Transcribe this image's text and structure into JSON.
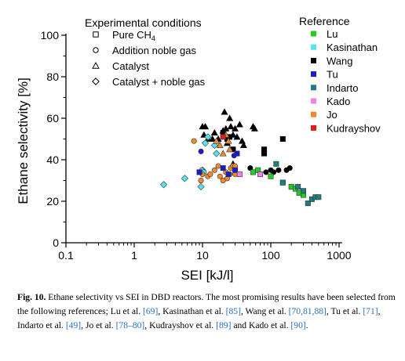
{
  "chart_data": {
    "type": "scatter",
    "xlabel": "SEI  [kJ/l]",
    "ylabel": "Ethane selectivity  [%]",
    "x_scale": "log",
    "xlim": [
      0.1,
      1000
    ],
    "ylim": [
      0,
      100
    ],
    "x_ticks": [
      "0.1",
      "1",
      "10",
      "100",
      "1000"
    ],
    "y_ticks": [
      "0",
      "20",
      "40",
      "60",
      "80",
      "100"
    ],
    "grid": false,
    "legend_markers": {
      "title": "Experimental conditions",
      "items": [
        {
          "marker": "square",
          "label": "Pure CH",
          "sub": "4"
        },
        {
          "marker": "circle",
          "label": "Addition noble gas"
        },
        {
          "marker": "triangle",
          "label": "Catalyst"
        },
        {
          "marker": "diamond",
          "label": "Catalyst + noble gas"
        }
      ]
    },
    "legend_refs": {
      "title": "Reference",
      "items": [
        {
          "label": "Lu",
          "color": "#22cc22"
        },
        {
          "label": "Kasinathan",
          "color": "#55e5ef"
        },
        {
          "label": "Wang",
          "color": "#000000"
        },
        {
          "label": "Tu",
          "color": "#1a1ad0"
        },
        {
          "label": "Indarto",
          "color": "#1e7d7d"
        },
        {
          "label": "Kado",
          "color": "#ee82ee"
        },
        {
          "label": "Jo",
          "color": "#f08a2c"
        },
        {
          "label": "Kudrayshov",
          "color": "#e01b1b"
        }
      ]
    },
    "series": [
      {
        "ref": "Wang",
        "marker": "triangle",
        "color": "#000000",
        "points": [
          [
            10,
            56
          ],
          [
            11,
            56
          ],
          [
            10.5,
            52
          ],
          [
            12,
            50
          ],
          [
            14,
            50
          ],
          [
            15,
            53
          ],
          [
            17,
            50
          ],
          [
            20,
            54
          ],
          [
            21,
            63
          ],
          [
            22,
            55
          ],
          [
            23,
            48
          ],
          [
            25,
            60
          ],
          [
            26,
            56
          ],
          [
            28,
            52
          ],
          [
            28,
            38
          ],
          [
            30,
            55
          ],
          [
            32,
            51
          ],
          [
            35,
            57
          ],
          [
            38,
            49
          ],
          [
            40,
            47
          ],
          [
            55,
            56
          ],
          [
            58,
            55
          ]
        ]
      },
      {
        "ref": "Wang",
        "marker": "square",
        "color": "#000000",
        "points": [
          [
            20,
            53
          ],
          [
            23,
            50
          ],
          [
            25,
            51
          ],
          [
            28,
            45
          ],
          [
            80,
            45
          ],
          [
            80,
            43
          ],
          [
            150,
            50
          ]
        ]
      },
      {
        "ref": "Wang",
        "marker": "circle",
        "color": "#000000",
        "points": [
          [
            50,
            36
          ],
          [
            85,
            34
          ],
          [
            100,
            35
          ],
          [
            110,
            34
          ],
          [
            130,
            35
          ],
          [
            170,
            35
          ],
          [
            190,
            36
          ]
        ]
      },
      {
        "ref": "Kasinathan",
        "marker": "diamond",
        "color": "#55e5ef",
        "points": [
          [
            2.7,
            28
          ],
          [
            5.5,
            31
          ],
          [
            9.5,
            27
          ],
          [
            10,
            35
          ],
          [
            11,
            48
          ],
          [
            12,
            51
          ],
          [
            15,
            47
          ],
          [
            16,
            43
          ]
        ]
      },
      {
        "ref": "Kasinathan",
        "marker": "circle",
        "color": "#55e5ef",
        "points": [
          [
            9.8,
            35
          ],
          [
            10.5,
            34
          ]
        ]
      },
      {
        "ref": "Jo",
        "marker": "circle",
        "color": "#f08a2c",
        "points": [
          [
            7.5,
            49
          ],
          [
            9.5,
            30
          ],
          [
            10,
            33
          ],
          [
            12,
            32
          ],
          [
            13,
            33
          ],
          [
            15,
            35
          ],
          [
            17,
            37
          ],
          [
            18,
            32
          ],
          [
            20,
            30
          ],
          [
            22,
            34
          ],
          [
            23,
            31
          ],
          [
            25,
            33
          ],
          [
            26,
            36
          ],
          [
            28,
            37
          ],
          [
            30,
            37
          ],
          [
            30,
            33
          ]
        ]
      },
      {
        "ref": "Jo",
        "marker": "triangle",
        "color": "#f08a2c",
        "points": [
          [
            16,
            49
          ],
          [
            18,
            47
          ],
          [
            20,
            43
          ],
          [
            22,
            52
          ],
          [
            24,
            49
          ],
          [
            25,
            45
          ]
        ]
      },
      {
        "ref": "Tu",
        "marker": "square",
        "color": "#1a1ad0",
        "points": [
          [
            9,
            34
          ],
          [
            20,
            36
          ],
          [
            24,
            33
          ],
          [
            30,
            35
          ],
          [
            32,
            43
          ]
        ]
      },
      {
        "ref": "Tu",
        "marker": "circle",
        "color": "#1a1ad0",
        "points": [
          [
            9.5,
            44
          ],
          [
            29,
            42
          ]
        ]
      },
      {
        "ref": "Lu",
        "marker": "square",
        "color": "#22cc22",
        "points": [
          [
            55,
            34
          ],
          [
            65,
            35
          ],
          [
            100,
            32
          ],
          [
            150,
            29
          ],
          [
            200,
            27
          ],
          [
            230,
            26
          ],
          [
            260,
            24
          ],
          [
            300,
            23
          ]
        ]
      },
      {
        "ref": "Indarto",
        "marker": "square",
        "color": "#1e7d7d",
        "points": [
          [
            120,
            38
          ],
          [
            150,
            29
          ],
          [
            250,
            27
          ],
          [
            300,
            25
          ],
          [
            350,
            19
          ],
          [
            400,
            21
          ],
          [
            450,
            22
          ],
          [
            500,
            22
          ]
        ]
      },
      {
        "ref": "Kado",
        "marker": "square",
        "color": "#ee82ee",
        "points": [
          [
            35,
            33
          ],
          [
            70,
            33
          ]
        ]
      },
      {
        "ref": "Kudrayshov",
        "marker": "square",
        "color": "#e01b1b",
        "points": [
          [
            20,
            51
          ]
        ]
      }
    ]
  },
  "caption": {
    "label": "Fig. 10.",
    "segments": [
      {
        "text": " Ethane selectivity vs SEI in DBD reactors. The most promising results have been selected from the following references; Lu et al. ",
        "ref": false
      },
      {
        "text": "[69]",
        "ref": true
      },
      {
        "text": ", Kasinathan et al. ",
        "ref": false
      },
      {
        "text": "[85]",
        "ref": true
      },
      {
        "text": ", Wang et al. ",
        "ref": false
      },
      {
        "text": "[70,81,88]",
        "ref": true
      },
      {
        "text": ", Tu et al. ",
        "ref": false
      },
      {
        "text": "[71]",
        "ref": true
      },
      {
        "text": ", Indarto et al. ",
        "ref": false
      },
      {
        "text": "[49]",
        "ref": true
      },
      {
        "text": ", Jo et al. ",
        "ref": false
      },
      {
        "text": "[78–80]",
        "ref": true
      },
      {
        "text": ", Kudrayshov et al. ",
        "ref": false
      },
      {
        "text": "[89]",
        "ref": true
      },
      {
        "text": " and Kado et al. ",
        "ref": false
      },
      {
        "text": "[90]",
        "ref": true
      },
      {
        "text": ".",
        "ref": false
      }
    ]
  }
}
